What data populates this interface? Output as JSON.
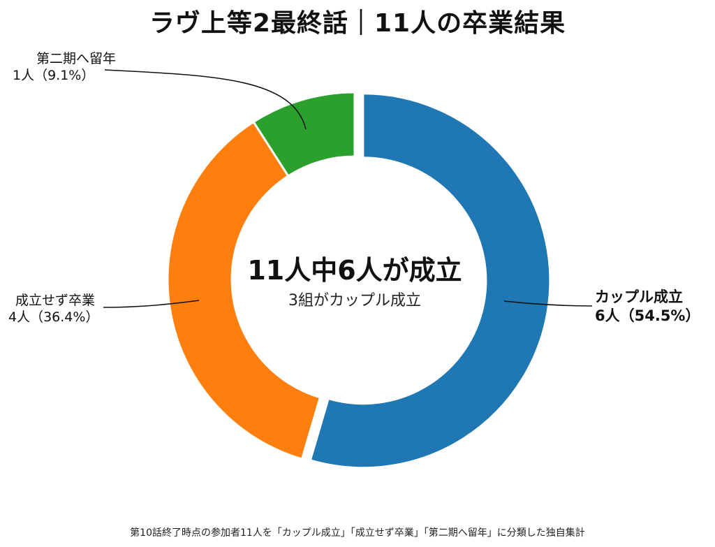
{
  "title": "ラヴ上等2最終話｜11人の卒業結果",
  "center": {
    "main": "11人中6人が成立",
    "sub": "3組がカップル成立"
  },
  "footer": "第10話終了時点の参加者11人を「カップル成立」「成立せず卒業」「第二期へ留年」に分類した独自集計",
  "chart_data": {
    "type": "pie",
    "donut": true,
    "total": 11,
    "slices": [
      {
        "name": "カップル成立",
        "value": 6,
        "percent": "54.5%",
        "label_value": "6人（54.5%）",
        "color": "#1f77b4",
        "exploded": true
      },
      {
        "name": "成立せず卒業",
        "value": 4,
        "percent": "36.4%",
        "label_value": "4人（36.4%）",
        "color": "#ff7f0e",
        "exploded": false
      },
      {
        "name": "第二期へ留年",
        "value": 1,
        "percent": "9.1%",
        "label_value": "1人（9.1%）",
        "color": "#2ca02c",
        "exploded": false
      }
    ]
  }
}
